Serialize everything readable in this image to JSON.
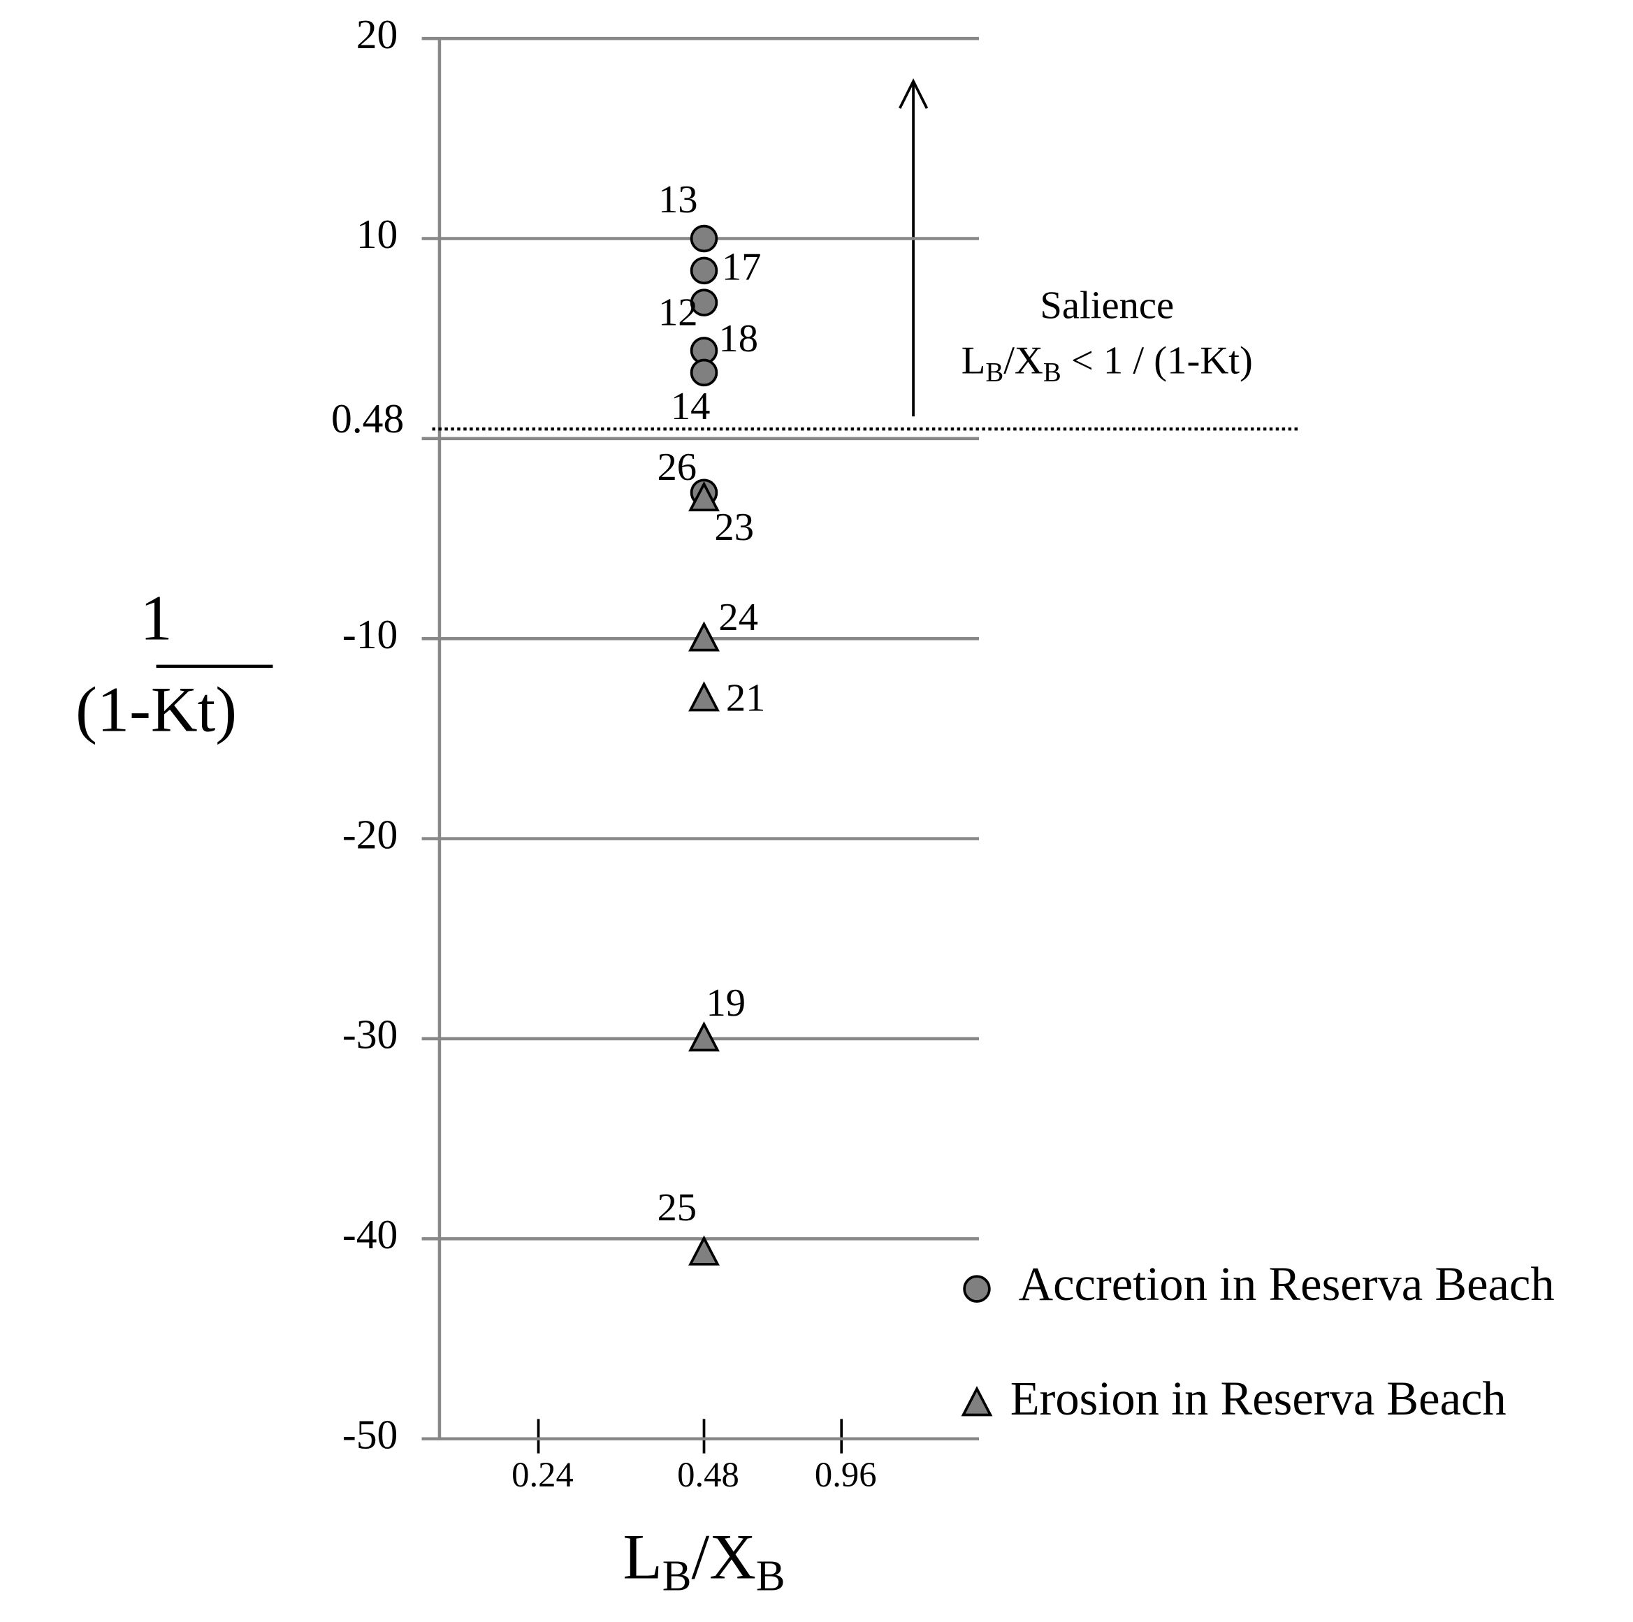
{
  "chart_data": {
    "type": "scatter",
    "ylim": [
      -50,
      20
    ],
    "yticks": [
      -50,
      -40,
      -30,
      -20,
      -10,
      {
        "value": 0,
        "label": null
      },
      10,
      20
    ],
    "xticks": [
      0.24,
      0.48,
      0.96
    ],
    "grid": true,
    "y_label": {
      "numerator": "1",
      "denominator": "(1-Kt)"
    },
    "x_label": [
      "L",
      "B",
      "/X",
      "B"
    ],
    "reference_line": {
      "value": 0.48,
      "label": "0.48",
      "style": "dotted"
    },
    "annotation": {
      "title": "Salience",
      "parts": [
        "L",
        "B",
        "/X",
        "B",
        " < 1 / (1-Kt)"
      ]
    },
    "series": [
      {
        "name": "Accretion in Reserva Beach",
        "marker": "circle",
        "color": "#808080",
        "x": [
          0.48,
          0.48,
          0.48,
          0.48,
          0.48,
          0.48
        ],
        "values": [
          10,
          8.4,
          6.8,
          4.4,
          3.3,
          -2.7
        ],
        "point_labels": [
          "13",
          "17",
          "12",
          "18",
          "14",
          "26"
        ]
      },
      {
        "name": "Erosion in Reserva Beach",
        "marker": "triangle",
        "color": "#808080",
        "x": [
          0.48,
          0.48,
          0.48,
          0.48,
          0.48
        ],
        "values": [
          -3,
          -10,
          -13,
          -30,
          -40.7
        ],
        "point_labels": [
          "23",
          "24",
          "21",
          "19",
          "25"
        ]
      }
    ]
  }
}
